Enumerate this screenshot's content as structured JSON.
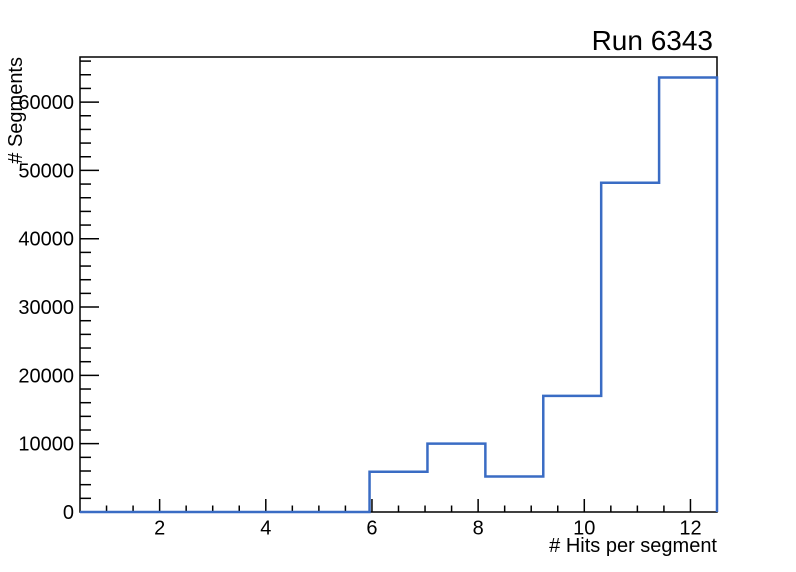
{
  "chart_data": {
    "type": "line",
    "subtype": "step-histogram",
    "title": "Run 6343",
    "xlabel": "# Hits per segment",
    "ylabel": "# Segments",
    "xlim": [
      0.5,
      12.5
    ],
    "ylim": [
      0,
      66600
    ],
    "x_major_ticks": [
      2,
      4,
      6,
      8,
      10,
      12
    ],
    "x_minor_step": 0.5,
    "y_major_ticks": [
      0,
      10000,
      20000,
      30000,
      40000,
      50000,
      60000
    ],
    "y_minor_step": 2000,
    "bins": {
      "edges": [
        0.5,
        1.5909,
        2.6818,
        3.7727,
        4.8636,
        5.9545,
        7.0455,
        8.1364,
        9.2273,
        10.3182,
        11.4091,
        12.5
      ],
      "counts": [
        0,
        0,
        0,
        0,
        0,
        5900,
        10000,
        5200,
        17000,
        48200,
        63600
      ]
    },
    "grid": false,
    "legend": false,
    "line_color": "#3a6cc4",
    "axis_color": "#000000",
    "background": "#ffffff"
  }
}
